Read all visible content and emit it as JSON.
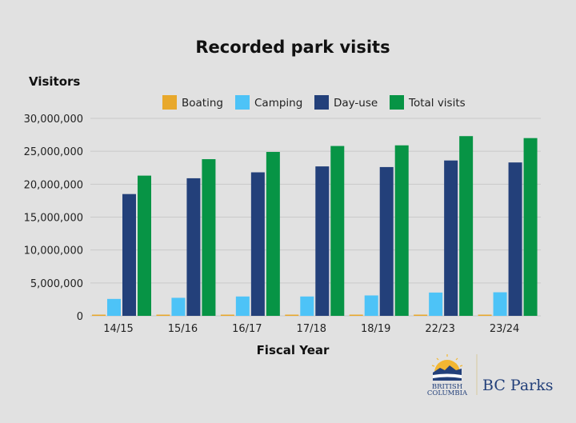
{
  "chart_data": {
    "type": "bar",
    "title": "Recorded park visits",
    "ylabel": "Visitors",
    "xlabel": "Fiscal Year",
    "categories": [
      "14/15",
      "15/16",
      "16/17",
      "17/18",
      "18/19",
      "22/23",
      "23/24"
    ],
    "series": [
      {
        "name": "Boating",
        "color": "#e8a82b",
        "values": [
          100000,
          100000,
          100000,
          100000,
          100000,
          100000,
          100000
        ]
      },
      {
        "name": "Camping",
        "color": "#4dc3f7",
        "values": [
          2570000,
          2740000,
          2940000,
          2940000,
          3100000,
          3540000,
          3580000
        ]
      },
      {
        "name": "Day-use",
        "color": "#23407a",
        "values": [
          18500000,
          20900000,
          21800000,
          22700000,
          22600000,
          23600000,
          23300000
        ]
      },
      {
        "name": "Total visits",
        "color": "#079445",
        "values": [
          21300000,
          23800000,
          24900000,
          25800000,
          25900000,
          27300000,
          27000000
        ]
      }
    ],
    "ylim": [
      0,
      30000000
    ],
    "yticks": [
      0,
      5000000,
      10000000,
      15000000,
      20000000,
      25000000,
      30000000
    ],
    "ytick_labels": [
      "0",
      "5,000,000",
      "10,000,000",
      "15,000,000",
      "20,000,000",
      "25,000,000",
      "30,000,000"
    ],
    "grid": true,
    "legend_position": "top"
  },
  "logo": {
    "line1": "BRITISH",
    "line2": "COLUMBIA",
    "brand": "BC Parks"
  }
}
